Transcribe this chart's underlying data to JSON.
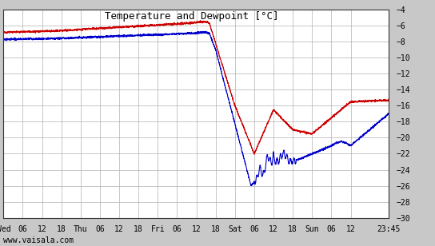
{
  "title": "Temperature and Dewpoint [°C]",
  "title_fontsize": 9,
  "bg_color": "#c8c8c8",
  "plot_bg_color": "#ffffff",
  "grid_color": "#b0b0b0",
  "line_color_temp": "#cc0000",
  "line_color_dew": "#0000cc",
  "ylim": [
    -30,
    -4
  ],
  "yticks": [
    -30,
    -28,
    -26,
    -24,
    -22,
    -20,
    -18,
    -16,
    -14,
    -12,
    -10,
    -8,
    -6,
    -4
  ],
  "xlabel_bottom": "www.vaisala.com",
  "watermark_fontsize": 7,
  "xtick_labels": [
    "Wed",
    "06",
    "12",
    "18",
    "Thu",
    "06",
    "12",
    "18",
    "Fri",
    "06",
    "12",
    "18",
    "Sat",
    "06",
    "12",
    "18",
    "Sun",
    "06",
    "12",
    "23:45"
  ],
  "xtick_positions": [
    0,
    6,
    12,
    18,
    24,
    30,
    36,
    42,
    48,
    54,
    60,
    66,
    72,
    78,
    84,
    90,
    96,
    102,
    108,
    119.75
  ],
  "xlim": [
    0,
    119.75
  ],
  "linewidth": 0.8
}
